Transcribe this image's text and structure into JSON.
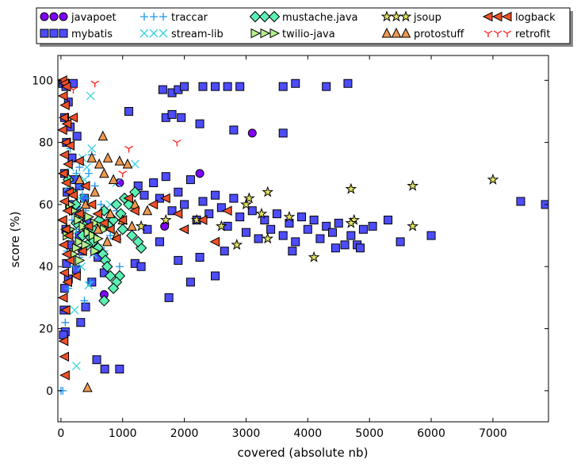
{
  "chart_data": {
    "type": "scatter",
    "xlabel": "covered (absolute nb)",
    "ylabel": "score (%)",
    "xlim": [
      -50,
      7900
    ],
    "ylim": [
      -10,
      108
    ],
    "xticks": [
      0,
      1000,
      2000,
      3000,
      4000,
      5000,
      6000,
      7000
    ],
    "yticks": [
      0,
      20,
      40,
      60,
      80,
      100
    ],
    "grid": false,
    "legend_position": "top",
    "legend_columns": 5,
    "series": [
      {
        "name": "javapoet",
        "marker": "circle",
        "color": "#8000ff",
        "points": [
          [
            3100,
            83
          ],
          [
            2250,
            70
          ],
          [
            950,
            67
          ],
          [
            1680,
            53
          ],
          [
            700,
            31
          ]
        ]
      },
      {
        "name": "mybatis",
        "marker": "square",
        "color": "#4d4dff",
        "points": [
          [
            30,
            99
          ],
          [
            80,
            98
          ],
          [
            200,
            99
          ],
          [
            120,
            93
          ],
          [
            60,
            88
          ],
          [
            150,
            85
          ],
          [
            260,
            82
          ],
          [
            90,
            80
          ],
          [
            180,
            75
          ],
          [
            60,
            70
          ],
          [
            220,
            68
          ],
          [
            300,
            66
          ],
          [
            100,
            64
          ],
          [
            380,
            62
          ],
          [
            140,
            60
          ],
          [
            250,
            58
          ],
          [
            420,
            55
          ],
          [
            80,
            52
          ],
          [
            300,
            50
          ],
          [
            500,
            49
          ],
          [
            150,
            47
          ],
          [
            350,
            45
          ],
          [
            600,
            43
          ],
          [
            90,
            41
          ],
          [
            250,
            39
          ],
          [
            700,
            38
          ],
          [
            120,
            36
          ],
          [
            500,
            35
          ],
          [
            60,
            33
          ],
          [
            400,
            27
          ],
          [
            50,
            26
          ],
          [
            320,
            22
          ],
          [
            70,
            19
          ],
          [
            40,
            18
          ],
          [
            580,
            10
          ],
          [
            710,
            7
          ],
          [
            950,
            7
          ],
          [
            1100,
            90
          ],
          [
            1250,
            66
          ],
          [
            1350,
            63
          ],
          [
            1500,
            67
          ],
          [
            1600,
            62
          ],
          [
            1700,
            69
          ],
          [
            1800,
            58
          ],
          [
            1900,
            64
          ],
          [
            2000,
            60
          ],
          [
            2100,
            68
          ],
          [
            2200,
            55
          ],
          [
            2300,
            61
          ],
          [
            2400,
            57
          ],
          [
            2500,
            63
          ],
          [
            2600,
            59
          ],
          [
            2700,
            53
          ],
          [
            2800,
            62
          ],
          [
            2900,
            56
          ],
          [
            3000,
            51
          ],
          [
            3100,
            58
          ],
          [
            3200,
            49
          ],
          [
            3300,
            55
          ],
          [
            3400,
            52
          ],
          [
            3500,
            57
          ],
          [
            3600,
            50
          ],
          [
            3700,
            54
          ],
          [
            3800,
            48
          ],
          [
            3900,
            56
          ],
          [
            4000,
            52
          ],
          [
            4100,
            55
          ],
          [
            4200,
            49
          ],
          [
            4300,
            53
          ],
          [
            4400,
            51
          ],
          [
            4500,
            54
          ],
          [
            4600,
            47
          ],
          [
            4700,
            50
          ],
          [
            4800,
            47
          ],
          [
            4900,
            52
          ],
          [
            1650,
            97
          ],
          [
            1800,
            96
          ],
          [
            1900,
            97
          ],
          [
            2000,
            98
          ],
          [
            2300,
            98
          ],
          [
            2500,
            98
          ],
          [
            2700,
            98
          ],
          [
            2900,
            98
          ],
          [
            3600,
            98
          ],
          [
            3800,
            99
          ],
          [
            4300,
            98
          ],
          [
            4650,
            99
          ],
          [
            1700,
            88
          ],
          [
            1800,
            89
          ],
          [
            1950,
            88
          ],
          [
            2250,
            86
          ],
          [
            2800,
            84
          ],
          [
            3600,
            83
          ],
          [
            1200,
            41
          ],
          [
            1300,
            40
          ],
          [
            1750,
            30
          ],
          [
            2100,
            35
          ],
          [
            2500,
            37
          ],
          [
            2650,
            45
          ],
          [
            2250,
            43
          ],
          [
            1900,
            42
          ],
          [
            1600,
            48
          ],
          [
            1400,
            52
          ],
          [
            5050,
            53
          ],
          [
            5500,
            48
          ],
          [
            6000,
            50
          ],
          [
            7450,
            61
          ],
          [
            7850,
            60
          ],
          [
            4850,
            46
          ],
          [
            3750,
            45
          ],
          [
            4450,
            46
          ],
          [
            5300,
            55
          ]
        ]
      },
      {
        "name": "traccar",
        "marker": "plus",
        "color": "#1e96f0",
        "points": [
          [
            0,
            0
          ],
          [
            30,
            0
          ],
          [
            70,
            22
          ],
          [
            120,
            33
          ],
          [
            200,
            40
          ],
          [
            300,
            43
          ],
          [
            250,
            52
          ],
          [
            400,
            58
          ],
          [
            350,
            63
          ],
          [
            450,
            70
          ],
          [
            300,
            72
          ],
          [
            150,
            78
          ],
          [
            500,
            76
          ],
          [
            200,
            60
          ],
          [
            350,
            48
          ],
          [
            600,
            55
          ],
          [
            800,
            50
          ],
          [
            950,
            40
          ],
          [
            480,
            35
          ],
          [
            380,
            29
          ],
          [
            100,
            45
          ],
          [
            550,
            66
          ],
          [
            320,
            66
          ],
          [
            420,
            62
          ],
          [
            250,
            70
          ],
          [
            650,
            60
          ],
          [
            700,
            45
          ],
          [
            900,
            58
          ],
          [
            180,
            55
          ]
        ]
      },
      {
        "name": "stream-lib",
        "marker": "x",
        "color": "#35d4e0",
        "points": [
          [
            250,
            8
          ],
          [
            220,
            26
          ],
          [
            480,
            95
          ],
          [
            500,
            78
          ],
          [
            420,
            72
          ],
          [
            380,
            68
          ],
          [
            300,
            62
          ],
          [
            260,
            58
          ],
          [
            230,
            53
          ],
          [
            330,
            40
          ],
          [
            450,
            34
          ],
          [
            520,
            44
          ],
          [
            600,
            46
          ],
          [
            700,
            55
          ],
          [
            180,
            50
          ],
          [
            120,
            66
          ],
          [
            150,
            72
          ],
          [
            350,
            75
          ],
          [
            1200,
            73
          ],
          [
            900,
            67
          ],
          [
            800,
            60
          ]
        ]
      },
      {
        "name": "mustache.java",
        "marker": "diamond",
        "color": "#5cf0b4",
        "points": [
          [
            120,
            68
          ],
          [
            180,
            64
          ],
          [
            240,
            60
          ],
          [
            310,
            56
          ],
          [
            380,
            53
          ],
          [
            450,
            50
          ],
          [
            520,
            48
          ],
          [
            600,
            46
          ],
          [
            680,
            44
          ],
          [
            250,
            54
          ],
          [
            350,
            50
          ],
          [
            430,
            47
          ],
          [
            520,
            52
          ],
          [
            620,
            55
          ],
          [
            700,
            58
          ],
          [
            780,
            53
          ],
          [
            850,
            55
          ],
          [
            900,
            60
          ],
          [
            970,
            57
          ],
          [
            1030,
            62
          ],
          [
            1100,
            60
          ],
          [
            1200,
            64
          ],
          [
            1300,
            46
          ],
          [
            1250,
            48
          ],
          [
            1150,
            50
          ],
          [
            1000,
            52
          ],
          [
            950,
            37
          ],
          [
            900,
            35
          ],
          [
            850,
            33
          ],
          [
            800,
            37
          ],
          [
            720,
            42
          ],
          [
            700,
            29
          ],
          [
            750,
            40
          ]
        ]
      },
      {
        "name": "twilio-java",
        "marker": "triangle-right",
        "color": "#b4f08c",
        "points": [
          [
            150,
            60
          ],
          [
            200,
            58
          ],
          [
            280,
            55
          ],
          [
            360,
            53
          ],
          [
            440,
            51
          ],
          [
            520,
            50
          ],
          [
            600,
            49
          ],
          [
            300,
            48
          ],
          [
            400,
            47
          ],
          [
            250,
            46
          ],
          [
            150,
            52
          ],
          [
            100,
            50
          ],
          [
            350,
            57
          ],
          [
            450,
            56
          ],
          [
            550,
            54
          ],
          [
            650,
            53
          ],
          [
            700,
            52
          ],
          [
            200,
            44
          ],
          [
            300,
            42
          ],
          [
            550,
            45
          ]
        ]
      },
      {
        "name": "jsoup",
        "marker": "star",
        "color": "#e0e060",
        "points": [
          [
            1300,
            53
          ],
          [
            1700,
            55
          ],
          [
            2200,
            55
          ],
          [
            2600,
            53
          ],
          [
            2850,
            47
          ],
          [
            3000,
            60
          ],
          [
            3050,
            62
          ],
          [
            3250,
            57
          ],
          [
            3350,
            64
          ],
          [
            3350,
            49
          ],
          [
            3700,
            56
          ],
          [
            4100,
            43
          ],
          [
            4700,
            65
          ],
          [
            4750,
            55
          ],
          [
            5700,
            66
          ],
          [
            5700,
            53
          ],
          [
            7000,
            68
          ],
          [
            4700,
            54
          ]
        ]
      },
      {
        "name": "protostuff",
        "marker": "triangle-up",
        "color": "#f09850",
        "points": [
          [
            430,
            1
          ],
          [
            680,
            82
          ],
          [
            500,
            75
          ],
          [
            620,
            73
          ],
          [
            760,
            75
          ],
          [
            950,
            74
          ],
          [
            1080,
            73
          ],
          [
            700,
            70
          ],
          [
            850,
            68
          ],
          [
            550,
            64
          ],
          [
            300,
            68
          ],
          [
            400,
            60
          ],
          [
            800,
            57
          ],
          [
            1150,
            53
          ],
          [
            1000,
            55
          ],
          [
            600,
            52
          ],
          [
            900,
            50
          ],
          [
            750,
            48
          ],
          [
            1200,
            60
          ],
          [
            1400,
            58
          ]
        ]
      },
      {
        "name": "logback",
        "marker": "triangle-left",
        "color": "#f05028",
        "points": [
          [
            30,
            100
          ],
          [
            60,
            99
          ],
          [
            90,
            98
          ],
          [
            40,
            95
          ],
          [
            70,
            92
          ],
          [
            50,
            88
          ],
          [
            100,
            86
          ],
          [
            30,
            84
          ],
          [
            80,
            80
          ],
          [
            60,
            76
          ],
          [
            120,
            73
          ],
          [
            40,
            70
          ],
          [
            90,
            67
          ],
          [
            140,
            64
          ],
          [
            60,
            61
          ],
          [
            110,
            58
          ],
          [
            30,
            55
          ],
          [
            80,
            52
          ],
          [
            130,
            50
          ],
          [
            50,
            47
          ],
          [
            100,
            44
          ],
          [
            150,
            42
          ],
          [
            60,
            38
          ],
          [
            110,
            35
          ],
          [
            40,
            30
          ],
          [
            80,
            26
          ],
          [
            50,
            16
          ],
          [
            60,
            11
          ],
          [
            70,
            5
          ],
          [
            300,
            74
          ],
          [
            400,
            66
          ],
          [
            500,
            60
          ],
          [
            600,
            57
          ],
          [
            700,
            54
          ],
          [
            800,
            52
          ],
          [
            900,
            49
          ],
          [
            1000,
            55
          ],
          [
            1200,
            58
          ],
          [
            1500,
            60
          ],
          [
            1700,
            62
          ],
          [
            1900,
            57
          ],
          [
            2000,
            52
          ],
          [
            2300,
            55
          ],
          [
            2500,
            48
          ],
          [
            2700,
            58
          ],
          [
            200,
            63
          ],
          [
            300,
            57
          ],
          [
            450,
            53
          ],
          [
            350,
            45
          ],
          [
            250,
            37
          ],
          [
            150,
            79
          ],
          [
            200,
            88
          ],
          [
            1100,
            62
          ]
        ]
      },
      {
        "name": "retrofit",
        "marker": "tri-down",
        "color": "#ff1a1a",
        "points": [
          [
            550,
            99
          ],
          [
            1100,
            78
          ],
          [
            1880,
            80
          ],
          [
            200,
            97
          ],
          [
            1000,
            70
          ]
        ]
      }
    ]
  }
}
